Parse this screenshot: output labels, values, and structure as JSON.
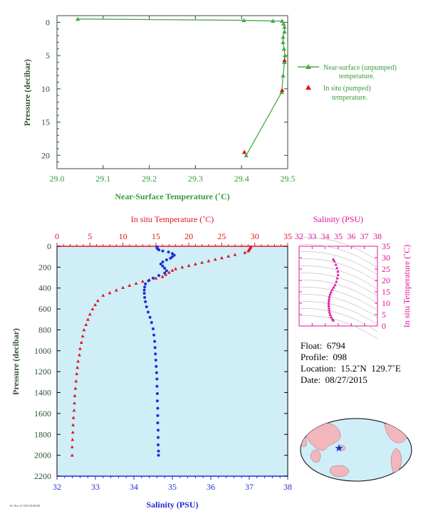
{
  "colors": {
    "green": "#4aa84a",
    "label_green": "#3a9a3a",
    "axis_green": "#2f4f2f",
    "red": "#e0141e",
    "blue": "#1f2fd6",
    "magenta": "#e0149a",
    "plot_bg": "#cfeef8",
    "land": "#f2b6bd"
  },
  "chart_data": [
    {
      "type": "line",
      "xlabel": "Near-Surface Temperature (˚C)",
      "ylabel": "Pressure (decibar)",
      "xlim": [
        29.0,
        29.5
      ],
      "ylim": [
        22,
        -1
      ],
      "x_ticks": [
        "29.0",
        "29.1",
        "29.2",
        "29.3",
        "29.4",
        "29.5"
      ],
      "y_ticks": [
        "0",
        "5",
        "10",
        "15",
        "20"
      ],
      "legend_placement": "right",
      "series": [
        {
          "name": "Near-surface (unpumped) temperature.",
          "marker": "triangle",
          "points": [
            [
              29.045,
              -0.5
            ],
            [
              29.405,
              -0.3
            ],
            [
              29.468,
              -0.2
            ],
            [
              29.488,
              -0.2
            ],
            [
              29.491,
              0.2
            ],
            [
              29.493,
              0.7
            ],
            [
              29.493,
              1.4
            ],
            [
              29.49,
              2.2
            ],
            [
              29.49,
              3.0
            ],
            [
              29.492,
              4.0
            ],
            [
              29.494,
              5.0
            ],
            [
              29.493,
              6.0
            ],
            [
              29.49,
              8.0
            ],
            [
              29.487,
              10.5
            ],
            [
              29.41,
              20.0
            ]
          ]
        },
        {
          "name": "In situ (pumped) temperature.",
          "marker": "triangle",
          "points": [
            [
              29.493,
              5.7
            ],
            [
              29.488,
              10.2
            ],
            [
              29.406,
              19.5
            ]
          ]
        }
      ]
    },
    {
      "type": "scatter",
      "ylabel": "Pressure (decibar)",
      "ylim": [
        2200,
        0
      ],
      "y_ticks": [
        "0",
        "200",
        "400",
        "600",
        "800",
        "1000",
        "1200",
        "1400",
        "1600",
        "1800",
        "2000",
        "2200"
      ],
      "top_axis": {
        "label": "In situ Temperature (˚C)",
        "range": [
          0,
          35
        ],
        "ticks": [
          "0",
          "5",
          "10",
          "15",
          "20",
          "25",
          "30",
          "35"
        ]
      },
      "bottom_axis": {
        "label": "Salinity (PSU)",
        "range": [
          32,
          38
        ],
        "ticks": [
          "32",
          "33",
          "34",
          "35",
          "36",
          "37",
          "38"
        ]
      },
      "series": [
        {
          "quantity": "temperature",
          "marker": "triangle",
          "points": [
            [
              29.4,
              5
            ],
            [
              29.3,
              15
            ],
            [
              29.2,
              25
            ],
            [
              29.1,
              35
            ],
            [
              29.0,
              45
            ],
            [
              28.5,
              60
            ],
            [
              27.0,
              80
            ],
            [
              26.0,
              95
            ],
            [
              25.0,
              110
            ],
            [
              24.0,
              125
            ],
            [
              23.0,
              140
            ],
            [
              22.0,
              155
            ],
            [
              21.0,
              170
            ],
            [
              20.0,
              185
            ],
            [
              19.0,
              200
            ],
            [
              18.0,
              215
            ],
            [
              17.5,
              230
            ],
            [
              17.0,
              250
            ],
            [
              16.5,
              270
            ],
            [
              16.0,
              290
            ],
            [
              15.0,
              305
            ],
            [
              14.0,
              320
            ],
            [
              13.0,
              335
            ],
            [
              12.0,
              355
            ],
            [
              11.0,
              375
            ],
            [
              10.0,
              395
            ],
            [
              9.0,
              420
            ],
            [
              8.0,
              445
            ],
            [
              7.0,
              470
            ],
            [
              6.2,
              520
            ],
            [
              5.8,
              560
            ],
            [
              5.4,
              600
            ],
            [
              5.0,
              650
            ],
            [
              4.7,
              700
            ],
            [
              4.4,
              750
            ],
            [
              4.1,
              800
            ],
            [
              3.9,
              860
            ],
            [
              3.7,
              920
            ],
            [
              3.5,
              980
            ],
            [
              3.4,
              1040
            ],
            [
              3.2,
              1100
            ],
            [
              3.1,
              1160
            ],
            [
              3.0,
              1220
            ],
            [
              2.9,
              1290
            ],
            [
              2.8,
              1360
            ],
            [
              2.7,
              1430
            ],
            [
              2.65,
              1500
            ],
            [
              2.6,
              1570
            ],
            [
              2.5,
              1640
            ],
            [
              2.45,
              1710
            ],
            [
              2.4,
              1780
            ],
            [
              2.35,
              1850
            ],
            [
              2.3,
              1920
            ],
            [
              2.3,
              2000
            ]
          ]
        },
        {
          "quantity": "salinity",
          "marker": "dot",
          "points": [
            [
              34.6,
              5
            ],
            [
              34.6,
              15
            ],
            [
              34.62,
              25
            ],
            [
              34.65,
              35
            ],
            [
              34.75,
              45
            ],
            [
              34.9,
              55
            ],
            [
              35.0,
              70
            ],
            [
              35.05,
              85
            ],
            [
              35.0,
              100
            ],
            [
              34.95,
              115
            ],
            [
              34.85,
              130
            ],
            [
              34.75,
              150
            ],
            [
              34.7,
              170
            ],
            [
              34.75,
              190
            ],
            [
              34.8,
              210
            ],
            [
              34.85,
              235
            ],
            [
              34.8,
              255
            ],
            [
              34.65,
              280
            ],
            [
              34.5,
              305
            ],
            [
              34.38,
              330
            ],
            [
              34.3,
              360
            ],
            [
              34.28,
              390
            ],
            [
              34.27,
              420
            ],
            [
              34.27,
              450
            ],
            [
              34.28,
              490
            ],
            [
              34.3,
              530
            ],
            [
              34.33,
              580
            ],
            [
              34.37,
              630
            ],
            [
              34.42,
              680
            ],
            [
              34.46,
              730
            ],
            [
              34.5,
              790
            ],
            [
              34.52,
              850
            ],
            [
              34.54,
              910
            ],
            [
              34.55,
              970
            ],
            [
              34.56,
              1030
            ],
            [
              34.57,
              1090
            ],
            [
              34.58,
              1150
            ],
            [
              34.59,
              1210
            ],
            [
              34.6,
              1270
            ],
            [
              34.6,
              1340
            ],
            [
              34.61,
              1410
            ],
            [
              34.61,
              1480
            ],
            [
              34.62,
              1550
            ],
            [
              34.62,
              1620
            ],
            [
              34.62,
              1690
            ],
            [
              34.63,
              1760
            ],
            [
              34.63,
              1830
            ],
            [
              34.63,
              1900
            ],
            [
              34.64,
              1960
            ],
            [
              34.64,
              2000
            ]
          ]
        }
      ]
    },
    {
      "type": "scatter",
      "xlabel": "Salinity (PSU)",
      "ylabel": "In situ Temperature (˚C)",
      "xlim": [
        32,
        38
      ],
      "ylim": [
        0,
        35
      ],
      "x_ticks": [
        "32",
        "33",
        "34",
        "35",
        "36",
        "37",
        "38"
      ],
      "y_ticks": [
        "0",
        "5",
        "10",
        "15",
        "20",
        "25",
        "30",
        "35"
      ],
      "points": [
        [
          34.62,
          29.3
        ],
        [
          34.7,
          28.5
        ],
        [
          34.82,
          27.0
        ],
        [
          34.9,
          25.5
        ],
        [
          34.97,
          24.0
        ],
        [
          34.98,
          22.5
        ],
        [
          34.92,
          21.0
        ],
        [
          34.85,
          19.5
        ],
        [
          34.75,
          18.0
        ],
        [
          34.65,
          17.0
        ],
        [
          34.55,
          16.0
        ],
        [
          34.45,
          15.0
        ],
        [
          34.38,
          14.0
        ],
        [
          34.33,
          13.0
        ],
        [
          34.3,
          12.0
        ],
        [
          34.28,
          11.0
        ],
        [
          34.27,
          10.0
        ],
        [
          34.27,
          9.0
        ],
        [
          34.28,
          8.0
        ],
        [
          34.3,
          7.0
        ],
        [
          34.33,
          6.0
        ],
        [
          34.38,
          5.0
        ],
        [
          34.45,
          4.0
        ],
        [
          34.55,
          3.0
        ],
        [
          34.62,
          2.5
        ]
      ]
    }
  ],
  "float_info": {
    "float_label": "Float:  6794",
    "profile_label": "Profile:  098",
    "location_label": "Location:  15.2˚N  129.7˚E",
    "date_label": "Date:  08/27/2015"
  },
  "map": {
    "marker_lat": 15.2,
    "marker_lon": 129.7
  },
  "footer_tiny": "Fri Nov 27 2015 00:00:00"
}
